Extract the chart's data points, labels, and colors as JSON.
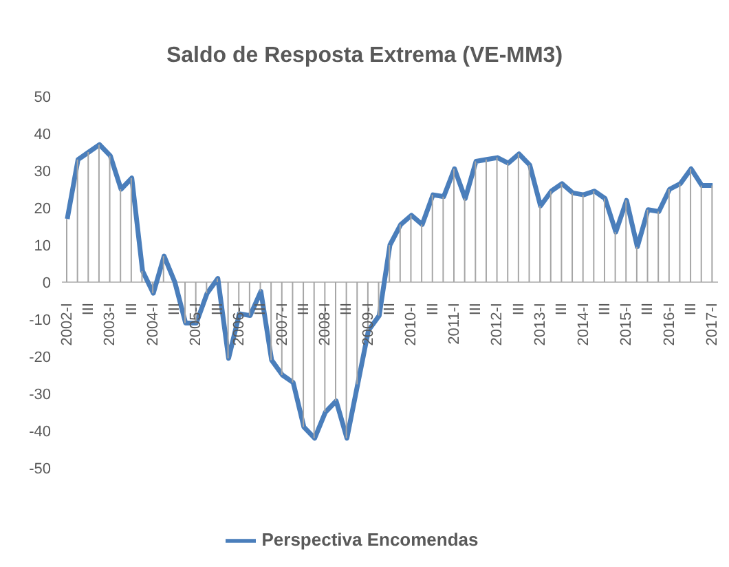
{
  "chart_data": {
    "type": "line",
    "title": "Saldo de Resposta Extrema (VE-MM3)",
    "categories": [
      "2002-I",
      null,
      "III",
      null,
      "2003-I",
      null,
      "III",
      null,
      "2004-I",
      null,
      "III",
      null,
      "2005-I",
      null,
      "III",
      null,
      "2006-I",
      null,
      "III",
      null,
      "2007-I",
      null,
      "III",
      null,
      "2008-I",
      null,
      "III",
      null,
      "2009-I",
      null,
      "III",
      null,
      "2010-I",
      null,
      "III",
      null,
      "2011-I",
      null,
      "III",
      null,
      "2012-I",
      null,
      "III",
      null,
      "2013-I",
      null,
      "III",
      null,
      "2014-I",
      null,
      "III",
      null,
      "2015-I",
      null,
      "III",
      null,
      "2016-I",
      null,
      "III",
      null,
      "2017-I"
    ],
    "series": [
      {
        "type": "bar",
        "color": "#a6a6a6",
        "values": [
          17,
          33,
          35,
          37,
          34,
          25,
          28,
          3,
          -3,
          7,
          0,
          -11,
          -11,
          -3,
          1,
          -20.5,
          -8.5,
          -9,
          -2.5,
          -21,
          -25,
          -27,
          -39,
          -42,
          -35,
          -32,
          -42,
          -27.5,
          -13,
          -9,
          10,
          15.5,
          18,
          15.5,
          23.5,
          23,
          30.5,
          22.5,
          32.5,
          33,
          33.5,
          32,
          34.5,
          31.5,
          20.5,
          24.5,
          26.5,
          24,
          23.5,
          24.5,
          22.5,
          13.5,
          22,
          9.5,
          19.5,
          19,
          25,
          26.5,
          30.5,
          26,
          26
        ]
      },
      {
        "name": "Perspectiva Encomendas",
        "color": "#4a7ebb",
        "values": [
          17,
          33,
          35,
          37,
          34,
          25,
          28,
          3,
          -3,
          7,
          0,
          -11,
          -11,
          -3,
          1,
          -20.5,
          -8.5,
          -9,
          -2.5,
          -21,
          -25,
          -27,
          -39,
          -42,
          -35,
          -32,
          -42,
          -27.5,
          -13,
          -9,
          10,
          15.5,
          18,
          15.5,
          23.5,
          23,
          30.5,
          22.5,
          32.5,
          33,
          33.5,
          32,
          34.5,
          31.5,
          20.5,
          24.5,
          26.5,
          24,
          23.5,
          24.5,
          22.5,
          13.5,
          22,
          9.5,
          19.5,
          19,
          25,
          26.5,
          30.5,
          26,
          26
        ]
      }
    ],
    "ylim": [
      -50,
      50
    ],
    "yticks": [
      -50,
      -40,
      -30,
      -20,
      -10,
      0,
      10,
      20,
      30,
      40,
      50
    ],
    "legend": "bottom",
    "marker": "none",
    "line_style": "solid"
  }
}
